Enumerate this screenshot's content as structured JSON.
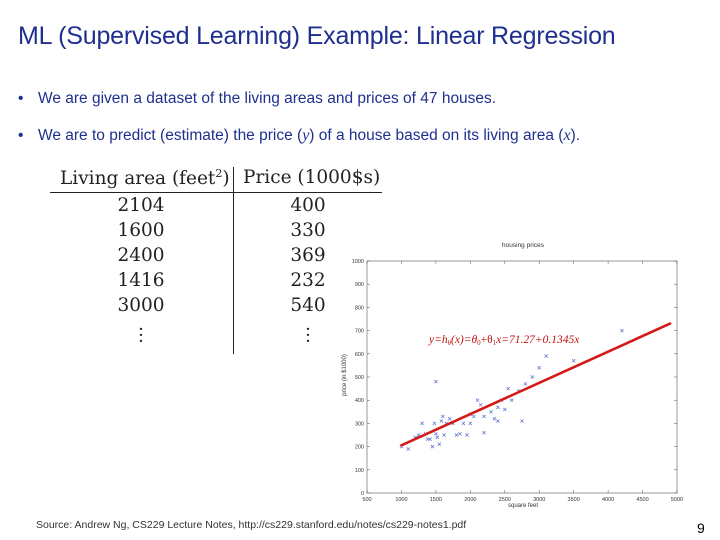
{
  "title": "ML (Supervised Learning)  Example: Linear Regression",
  "bullets": {
    "b1": {
      "marker": "•",
      "text": "We are given a dataset of the living areas and prices of 47 houses."
    },
    "b2": {
      "marker": "•",
      "pre": "We are to predict (estimate) the price (",
      "var_y": "y",
      "mid": ") of a house based on its living area (",
      "var_x": "x",
      "post": ")."
    }
  },
  "table": {
    "header_area": "Living area (feet",
    "header_area_sup": "2",
    "header_area_close": ")",
    "header_price": "Price (1000$s)",
    "rows": [
      {
        "area": "2104",
        "price": "400"
      },
      {
        "area": "1600",
        "price": "330"
      },
      {
        "area": "2400",
        "price": "369"
      },
      {
        "area": "1416",
        "price": "232"
      },
      {
        "area": "3000",
        "price": "540"
      }
    ]
  },
  "chart_data": {
    "type": "scatter",
    "title": "housing prices",
    "xlabel": "square feet",
    "ylabel": "price (in $1000)",
    "xlim": [
      500,
      5000
    ],
    "ylim": [
      0,
      1000
    ],
    "xticks": [
      500,
      1000,
      1500,
      2000,
      2500,
      3000,
      3500,
      4000,
      4500,
      5000
    ],
    "yticks": [
      0,
      100,
      200,
      300,
      400,
      500,
      600,
      700,
      800,
      900,
      1000
    ],
    "marker": "x",
    "marker_color": "#5a6fd0",
    "points": [
      [
        1000,
        200
      ],
      [
        1100,
        190
      ],
      [
        1200,
        240
      ],
      [
        1250,
        250
      ],
      [
        1300,
        300
      ],
      [
        1350,
        255
      ],
      [
        1380,
        232
      ],
      [
        1416,
        232
      ],
      [
        1450,
        200
      ],
      [
        1480,
        300
      ],
      [
        1500,
        255
      ],
      [
        1520,
        240
      ],
      [
        1550,
        210
      ],
      [
        1580,
        310
      ],
      [
        1600,
        330
      ],
      [
        1620,
        250
      ],
      [
        1650,
        300
      ],
      [
        1700,
        320
      ],
      [
        1750,
        300
      ],
      [
        1800,
        250
      ],
      [
        1850,
        255
      ],
      [
        1900,
        300
      ],
      [
        1950,
        250
      ],
      [
        2000,
        300
      ],
      [
        2000,
        340
      ],
      [
        2050,
        330
      ],
      [
        2104,
        400
      ],
      [
        2150,
        380
      ],
      [
        2200,
        330
      ],
      [
        2200,
        260
      ],
      [
        2300,
        350
      ],
      [
        2350,
        320
      ],
      [
        2400,
        369
      ],
      [
        2400,
        310
      ],
      [
        2450,
        400
      ],
      [
        2500,
        360
      ],
      [
        2550,
        450
      ],
      [
        2600,
        400
      ],
      [
        2700,
        440
      ],
      [
        2750,
        310
      ],
      [
        2800,
        470
      ],
      [
        2900,
        500
      ],
      [
        3000,
        540
      ],
      [
        3100,
        590
      ],
      [
        3500,
        570
      ],
      [
        4200,
        700
      ],
      [
        1500,
        480
      ]
    ],
    "fit_line": {
      "equation_lhs": "y=h",
      "equation_sub": "θ",
      "equation_mid": "(x)=θ",
      "equation_sub0": "0",
      "equation_plus": "+θ",
      "equation_sub1": "1",
      "equation_rhs": "x=71.27+0.1345x",
      "color": "#d61818",
      "intercept": 71.27,
      "slope": 0.1345,
      "x_from": 1000,
      "x_to": 4900
    }
  },
  "source": "Source: Andrew Ng, CS229 Lecture Notes, http://cs229.stanford.edu/notes/cs229-notes1.pdf",
  "page_number": "9"
}
